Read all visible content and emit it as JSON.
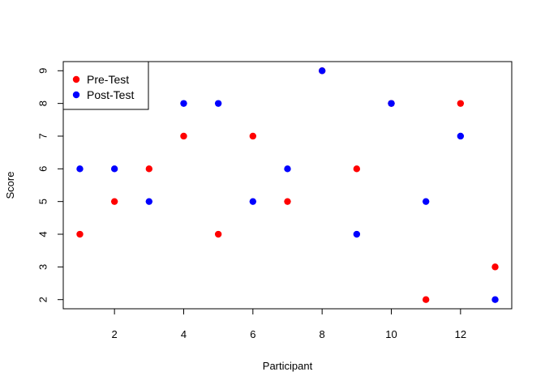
{
  "chart_data": {
    "type": "scatter",
    "title": "",
    "xlabel": "Participant",
    "ylabel": "Score",
    "xlim": [
      0.52,
      13.48
    ],
    "ylim": [
      1.72,
      9.28
    ],
    "xticks": [
      2,
      4,
      6,
      8,
      10,
      12
    ],
    "yticks": [
      2,
      3,
      4,
      5,
      6,
      7,
      8,
      9
    ],
    "grid": false,
    "legend_position": "top-left",
    "series": [
      {
        "name": "Pre-Test",
        "color": "#ff0000",
        "points": [
          {
            "x": 1,
            "y": 4
          },
          {
            "x": 2,
            "y": 5
          },
          {
            "x": 3,
            "y": 6
          },
          {
            "x": 4,
            "y": 7
          },
          {
            "x": 5,
            "y": 4
          },
          {
            "x": 6,
            "y": 7
          },
          {
            "x": 7,
            "y": 5
          },
          {
            "x": 8,
            "y": 9
          },
          {
            "x": 9,
            "y": 6
          },
          {
            "x": 10,
            "y": 8
          },
          {
            "x": 11,
            "y": 2
          },
          {
            "x": 12,
            "y": 8
          },
          {
            "x": 13,
            "y": 3
          }
        ]
      },
      {
        "name": "Post-Test",
        "color": "#0000ff",
        "points": [
          {
            "x": 1,
            "y": 6
          },
          {
            "x": 2,
            "y": 6
          },
          {
            "x": 3,
            "y": 5
          },
          {
            "x": 4,
            "y": 8
          },
          {
            "x": 5,
            "y": 8
          },
          {
            "x": 6,
            "y": 5
          },
          {
            "x": 7,
            "y": 6
          },
          {
            "x": 8,
            "y": 9
          },
          {
            "x": 9,
            "y": 4
          },
          {
            "x": 10,
            "y": 8
          },
          {
            "x": 11,
            "y": 5
          },
          {
            "x": 12,
            "y": 7
          },
          {
            "x": 13,
            "y": 2
          }
        ]
      }
    ]
  }
}
